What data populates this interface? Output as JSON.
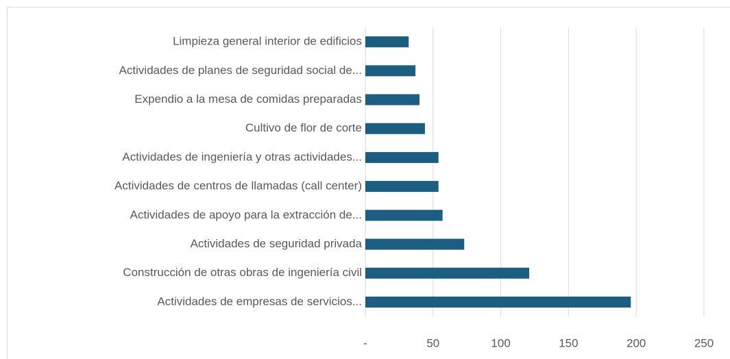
{
  "chart_data": {
    "type": "bar",
    "orientation": "horizontal",
    "categories": [
      "Limpieza general interior de edificios",
      "Actividades de planes de seguridad social de...",
      "Expendio a la mesa de comidas preparadas",
      "Cultivo de flor de corte",
      "Actividades de ingeniería y otras actividades...",
      "Actividades de centros de llamadas (call center)",
      "Actividades de apoyo para la extracción de...",
      "Actividades de seguridad privada",
      "Construcción de otras obras de ingeniería civil",
      "Actividades de empresas de servicios..."
    ],
    "values": [
      32,
      37,
      40,
      44,
      54,
      54,
      57,
      73,
      121,
      196
    ],
    "color": "#1b5e82",
    "xlim": [
      0,
      250
    ],
    "xticks": [
      {
        "value": 0,
        "label": "-"
      },
      50,
      100,
      150,
      200,
      250
    ],
    "grid": true
  }
}
